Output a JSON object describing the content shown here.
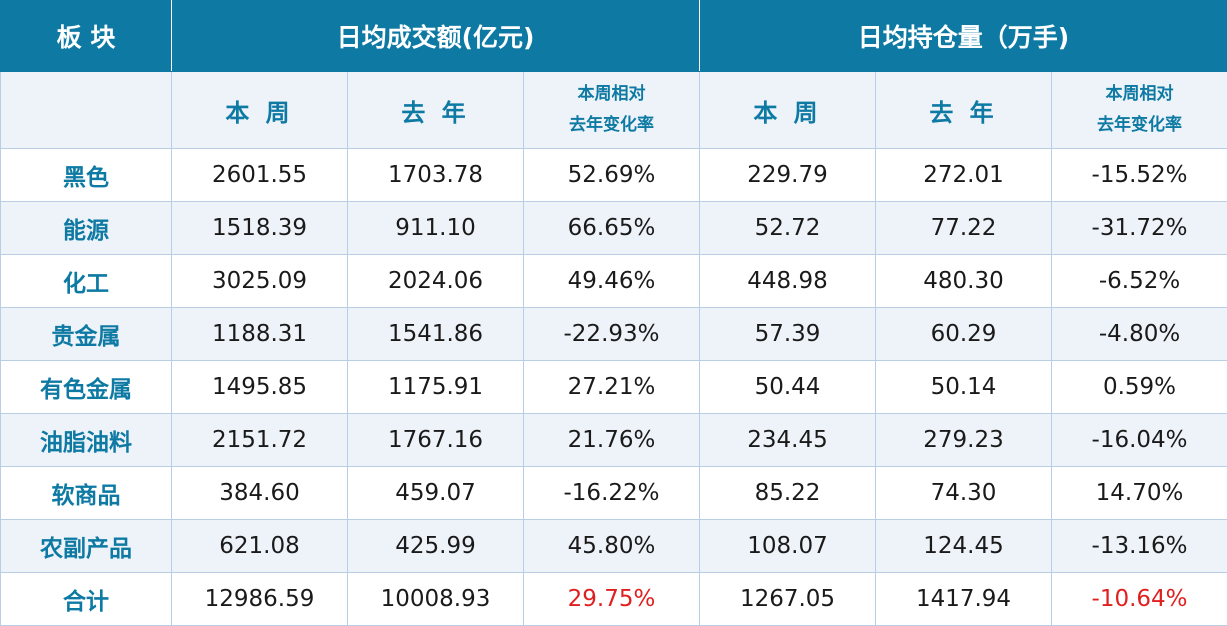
{
  "header": {
    "sector": "板 块",
    "turnover_group": "日均成交额(亿元)",
    "oi_group": "日均持仓量（万手)"
  },
  "subheader": {
    "this_week": "本 周",
    "last_year": "去 年",
    "change_line1": "本周相对",
    "change_line2": "去年变化率"
  },
  "rows": [
    {
      "name": "黑色",
      "t_week": "2601.55",
      "t_year": "1703.78",
      "t_chg": "52.69%",
      "o_week": "229.79",
      "o_year": "272.01",
      "o_chg": "-15.52%"
    },
    {
      "name": "能源",
      "t_week": "1518.39",
      "t_year": "911.10",
      "t_chg": "66.65%",
      "o_week": "52.72",
      "o_year": "77.22",
      "o_chg": "-31.72%"
    },
    {
      "name": "化工",
      "t_week": "3025.09",
      "t_year": "2024.06",
      "t_chg": "49.46%",
      "o_week": "448.98",
      "o_year": "480.30",
      "o_chg": "-6.52%"
    },
    {
      "name": "贵金属",
      "t_week": "1188.31",
      "t_year": "1541.86",
      "t_chg": "-22.93%",
      "o_week": "57.39",
      "o_year": "60.29",
      "o_chg": "-4.80%"
    },
    {
      "name": "有色金属",
      "t_week": "1495.85",
      "t_year": "1175.91",
      "t_chg": "27.21%",
      "o_week": "50.44",
      "o_year": "50.14",
      "o_chg": "0.59%"
    },
    {
      "name": "油脂油料",
      "t_week": "2151.72",
      "t_year": "1767.16",
      "t_chg": "21.76%",
      "o_week": "234.45",
      "o_year": "279.23",
      "o_chg": "-16.04%"
    },
    {
      "name": "软商品",
      "t_week": "384.60",
      "t_year": "459.07",
      "t_chg": "-16.22%",
      "o_week": "85.22",
      "o_year": "74.30",
      "o_chg": "14.70%"
    },
    {
      "name": "农副产品",
      "t_week": "621.08",
      "t_year": "425.99",
      "t_chg": "45.80%",
      "o_week": "108.07",
      "o_year": "124.45",
      "o_chg": "-13.16%"
    }
  ],
  "total": {
    "name": "合计",
    "t_week": "12986.59",
    "t_year": "10008.93",
    "t_chg": "29.75%",
    "o_week": "1267.05",
    "o_year": "1417.94",
    "o_chg": "-10.64%"
  },
  "colors": {
    "header_bg": "#0e7aa3",
    "alt_row_bg": "#eef3f9",
    "highlight_red": "#e02020"
  }
}
